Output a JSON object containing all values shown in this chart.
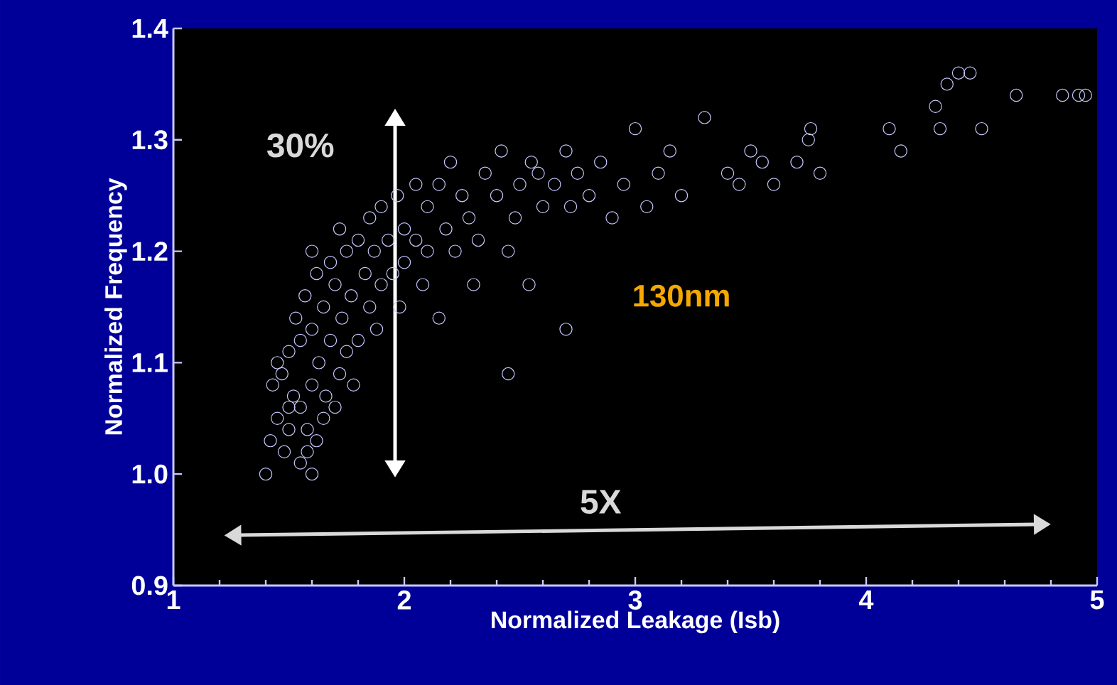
{
  "chart_data": {
    "type": "scatter",
    "xlabel": "Normalized Leakage (Isb)",
    "ylabel": "Normalized Frequency",
    "xlim": [
      1,
      5
    ],
    "ylim": [
      0.9,
      1.4
    ],
    "xticks": [
      1,
      2,
      3,
      4,
      5
    ],
    "yticks": [
      {
        "value": 0.9,
        "label": "0.9"
      },
      {
        "value": 1.0,
        "label": "1.0"
      },
      {
        "value": 1.1,
        "label": "1.1"
      },
      {
        "value": 1.2,
        "label": "1.2"
      },
      {
        "value": 1.3,
        "label": "1.3"
      },
      {
        "value": 1.4,
        "label": "1.4"
      }
    ],
    "marker": "circle",
    "annotations": [
      "30%",
      "5X",
      "130nm"
    ],
    "series": [
      {
        "color": "#c8c8ff",
        "x": [
          1.4,
          1.42,
          1.48,
          1.45,
          1.6,
          1.55,
          1.5,
          1.43,
          1.47,
          1.5,
          1.52,
          1.55,
          1.58,
          1.62,
          1.65,
          1.6,
          1.55,
          1.53,
          1.57,
          1.6,
          1.63,
          1.66,
          1.7,
          1.72,
          1.68,
          1.65,
          1.62,
          1.6,
          1.68,
          1.7,
          1.73,
          1.75,
          1.78,
          1.8,
          1.77,
          1.75,
          1.72,
          1.8,
          1.83,
          1.85,
          1.88,
          1.9,
          1.87,
          1.85,
          1.9,
          1.93,
          1.95,
          1.98,
          2.0,
          2.0,
          1.97,
          2.05,
          2.08,
          2.1,
          2.05,
          2.1,
          2.15,
          2.18,
          2.15,
          2.2,
          2.25,
          2.22,
          2.3,
          2.28,
          2.35,
          2.32,
          2.4,
          2.42,
          2.45,
          2.5,
          2.48,
          2.55,
          2.6,
          2.58,
          2.65,
          2.7,
          2.72,
          2.75,
          2.8,
          2.85,
          2.9,
          2.95,
          3.0,
          3.05,
          3.1,
          3.15,
          3.2,
          3.3,
          3.4,
          3.45,
          3.5,
          3.55,
          3.6,
          3.7,
          3.75,
          3.76,
          3.8,
          4.1,
          4.15,
          4.3,
          4.32,
          4.35,
          4.4,
          4.45,
          4.5,
          4.65,
          4.85,
          4.92,
          4.95,
          2.45,
          2.7,
          2.54,
          1.5,
          1.45,
          1.58
        ],
        "values": [
          1.0,
          1.03,
          1.02,
          1.05,
          1.0,
          1.01,
          1.04,
          1.08,
          1.09,
          1.11,
          1.07,
          1.06,
          1.04,
          1.03,
          1.05,
          1.08,
          1.12,
          1.14,
          1.16,
          1.13,
          1.1,
          1.07,
          1.06,
          1.09,
          1.12,
          1.15,
          1.18,
          1.2,
          1.19,
          1.17,
          1.14,
          1.11,
          1.08,
          1.12,
          1.16,
          1.2,
          1.22,
          1.21,
          1.18,
          1.15,
          1.13,
          1.17,
          1.2,
          1.23,
          1.24,
          1.21,
          1.18,
          1.15,
          1.19,
          1.22,
          1.25,
          1.21,
          1.17,
          1.24,
          1.26,
          1.2,
          1.14,
          1.22,
          1.26,
          1.28,
          1.25,
          1.2,
          1.17,
          1.23,
          1.27,
          1.21,
          1.25,
          1.29,
          1.2,
          1.26,
          1.23,
          1.28,
          1.24,
          1.27,
          1.26,
          1.29,
          1.24,
          1.27,
          1.25,
          1.28,
          1.23,
          1.26,
          1.31,
          1.24,
          1.27,
          1.29,
          1.25,
          1.32,
          1.27,
          1.26,
          1.29,
          1.28,
          1.26,
          1.28,
          1.3,
          1.31,
          1.27,
          1.31,
          1.29,
          1.33,
          1.31,
          1.35,
          1.36,
          1.36,
          1.31,
          1.34,
          1.34,
          1.34,
          1.34,
          1.09,
          1.13,
          1.17,
          1.06,
          1.1,
          1.02
        ]
      }
    ]
  }
}
